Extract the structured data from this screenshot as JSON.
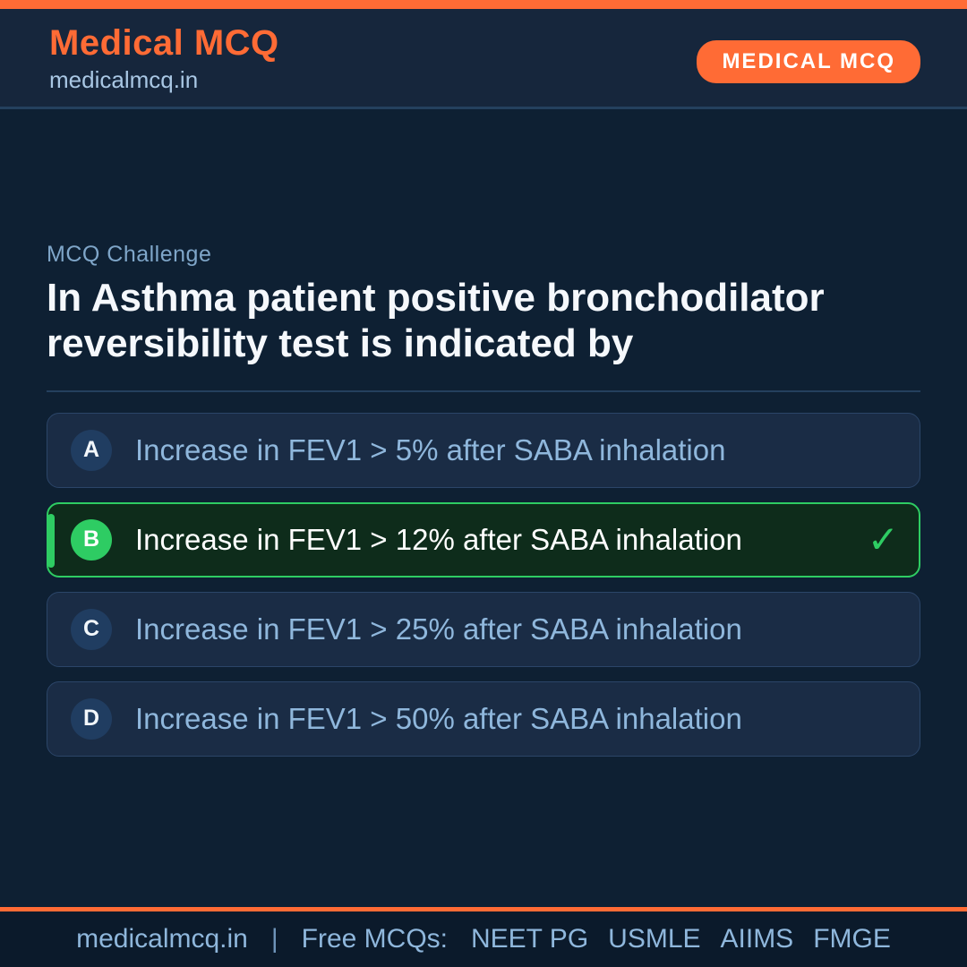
{
  "colors": {
    "accent_orange": "#ff6b35",
    "success_green": "#2ecc63",
    "header_bg": "#16263c",
    "body_bg": "#0e2033",
    "footer_bg": "#0b1a2b",
    "card_bg": "#1a2c45",
    "selected_bg": "#0e2c1b"
  },
  "header": {
    "brand": "Medical MCQ",
    "site": "medicalmcq.in",
    "badge": "MEDICAL MCQ"
  },
  "question": {
    "label": "MCQ Challenge",
    "text": "In Asthma patient positive bronchodilator reversibility test is indicated by"
  },
  "options": [
    {
      "letter": "A",
      "text": "Increase in FEV1 > 5% after SABA inhalation",
      "correct": false
    },
    {
      "letter": "B",
      "text": "Increase in FEV1 > 12% after SABA inhalation",
      "correct": true,
      "check_icon": "✓"
    },
    {
      "letter": "C",
      "text": "Increase in FEV1 > 25% after SABA inhalation",
      "correct": false
    },
    {
      "letter": "D",
      "text": "Increase in FEV1 > 50% after SABA inhalation",
      "correct": false
    }
  ],
  "footer": {
    "site": "medicalmcq.in",
    "separator": "|",
    "tagline": "Free MCQs:",
    "exams": [
      "NEET PG",
      "USMLE",
      "AIIMS",
      "FMGE"
    ]
  }
}
